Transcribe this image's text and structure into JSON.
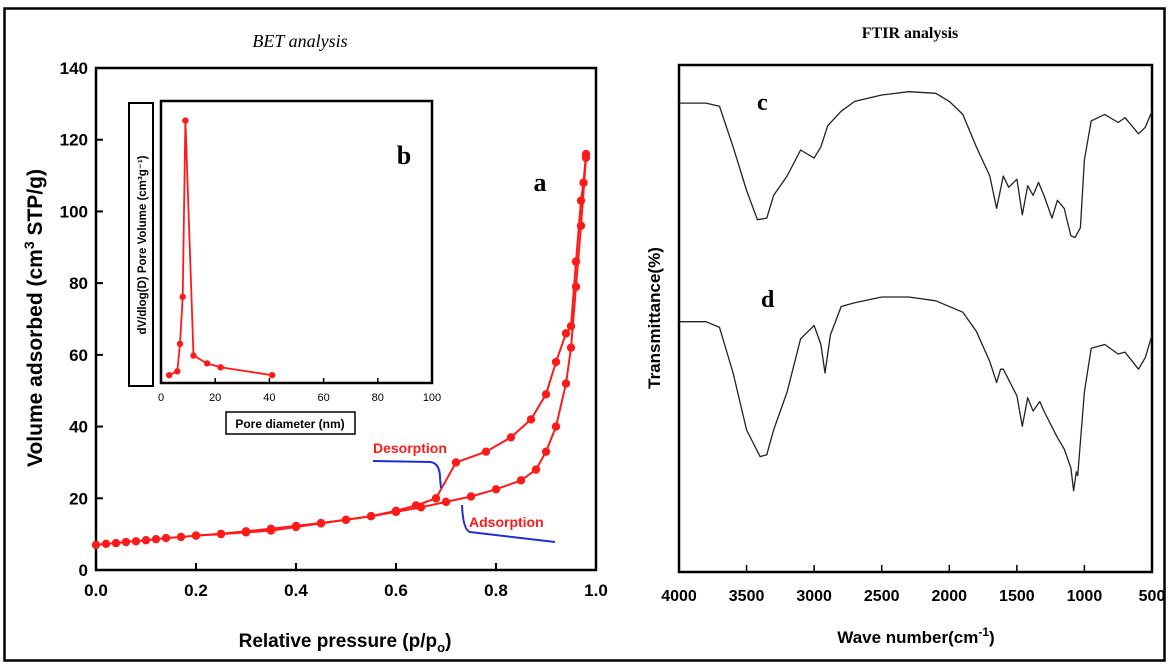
{
  "colors": {
    "frame": "#000000",
    "red_series": "#ff1a1a",
    "blue_arrow": "#1f2fd6",
    "spectrum": "#222222"
  },
  "chart_data": [
    {
      "id": "bet",
      "type": "line",
      "title": "BET analysis",
      "xlabel": "Relative pressure (p/p",
      "xlabel_sub": "o",
      "xlabel_end": ")",
      "ylabel": "Volume adsorbed (cm",
      "ylabel_sup": "3",
      "ylabel_end": " STP/g)",
      "xlim": [
        0.0,
        1.0
      ],
      "ylim": [
        0,
        140
      ],
      "xticks": [
        "0.0",
        "0.2",
        "0.4",
        "0.6",
        "0.8",
        "1.0"
      ],
      "yticks": [
        "0",
        "20",
        "40",
        "60",
        "80",
        "100",
        "120",
        "140"
      ],
      "panel_label": "a",
      "annotations": {
        "desorption": "Desorption",
        "adsorption": "Adsorption"
      },
      "series": [
        {
          "x": [
            0.0,
            0.02,
            0.04,
            0.06,
            0.08,
            0.1,
            0.12,
            0.14,
            0.17,
            0.2,
            0.25,
            0.3,
            0.35,
            0.4,
            0.45,
            0.5,
            0.55,
            0.6,
            0.65,
            0.7,
            0.75,
            0.8,
            0.85,
            0.88,
            0.9,
            0.92,
            0.94,
            0.95,
            0.96,
            0.97,
            0.98
          ],
          "y": [
            7,
            7.3,
            7.5,
            7.8,
            8.0,
            8.3,
            8.6,
            8.9,
            9.2,
            9.6,
            10.1,
            10.8,
            11.5,
            12.3,
            13.1,
            14.0,
            15.0,
            16.2,
            17.5,
            19.0,
            20.5,
            22.5,
            25.0,
            28.0,
            33.0,
            40.0,
            52.0,
            62.0,
            79.0,
            96.0,
            115.0
          ]
        },
        {
          "x": [
            0.98,
            0.975,
            0.97,
            0.96,
            0.95,
            0.94,
            0.92,
            0.9,
            0.87,
            0.83,
            0.78,
            0.72,
            0.68,
            0.64,
            0.6,
            0.55,
            0.5,
            0.45,
            0.4,
            0.35,
            0.3,
            0.25,
            0.2
          ],
          "y": [
            116.0,
            108.0,
            103.0,
            86.0,
            68.0,
            66.0,
            58.0,
            49.0,
            42.0,
            37.0,
            33.0,
            30.0,
            20.0,
            18.0,
            16.5,
            15.0,
            14.0,
            13.0,
            12.0,
            11.0,
            10.5,
            10.0,
            9.6
          ]
        }
      ]
    },
    {
      "id": "bjh-inset",
      "type": "line",
      "xlabel": "Pore diameter (nm)",
      "ylabel": "dV/dlog(D) Pore Volume (cm³g⁻¹)",
      "xlim": [
        0,
        100
      ],
      "xticks": [
        "0",
        "20",
        "40",
        "60",
        "80",
        "100"
      ],
      "panel_label": "b",
      "series": [
        {
          "x": [
            3,
            6,
            7,
            8,
            9,
            12,
            17,
            22,
            41
          ],
          "y": [
            0.02,
            0.03,
            0.1,
            0.22,
            0.67,
            0.07,
            0.05,
            0.04,
            0.02
          ]
        }
      ]
    },
    {
      "id": "ftir",
      "type": "line",
      "title": "FTIR  analysis",
      "xlabel": "Wave number(cm",
      "xlabel_sup": "-1",
      "xlabel_end": ")",
      "ylabel": "Transmittance(%)",
      "xlim": [
        4000,
        500
      ],
      "xticks": [
        "4000",
        "3500",
        "3000",
        "2500",
        "2000",
        "1500",
        "1000",
        "500"
      ],
      "series": [
        {
          "name": "c",
          "x": [
            4000,
            3800,
            3700,
            3600,
            3500,
            3420,
            3350,
            3300,
            3200,
            3100,
            3000,
            2950,
            2900,
            2800,
            2700,
            2500,
            2300,
            2100,
            2000,
            1900,
            1800,
            1700,
            1650,
            1600,
            1560,
            1500,
            1460,
            1420,
            1380,
            1340,
            1300,
            1240,
            1200,
            1150,
            1100,
            1070,
            1030,
            1000,
            950,
            850,
            750,
            700,
            600,
            550,
            500
          ],
          "y": [
            0.87,
            0.87,
            0.85,
            0.6,
            0.33,
            0.15,
            0.16,
            0.3,
            0.42,
            0.58,
            0.53,
            0.6,
            0.73,
            0.82,
            0.88,
            0.92,
            0.94,
            0.93,
            0.88,
            0.8,
            0.6,
            0.42,
            0.22,
            0.42,
            0.35,
            0.4,
            0.18,
            0.36,
            0.3,
            0.38,
            0.3,
            0.16,
            0.27,
            0.22,
            0.05,
            0.04,
            0.1,
            0.52,
            0.76,
            0.8,
            0.75,
            0.78,
            0.68,
            0.72,
            0.82
          ]
        },
        {
          "name": "d",
          "x": [
            4000,
            3800,
            3700,
            3600,
            3500,
            3400,
            3350,
            3300,
            3200,
            3100,
            3000,
            2950,
            2920,
            2880,
            2800,
            2700,
            2500,
            2300,
            2100,
            1900,
            1800,
            1700,
            1650,
            1620,
            1600,
            1500,
            1460,
            1420,
            1380,
            1330,
            1300,
            1200,
            1150,
            1100,
            1080,
            1060,
            1050,
            1000,
            950,
            850,
            750,
            700,
            600,
            550,
            500
          ],
          "y": [
            0.87,
            0.87,
            0.84,
            0.6,
            0.3,
            0.16,
            0.17,
            0.3,
            0.5,
            0.78,
            0.85,
            0.75,
            0.6,
            0.8,
            0.95,
            0.97,
            1.0,
            1.0,
            0.98,
            0.92,
            0.82,
            0.66,
            0.55,
            0.62,
            0.62,
            0.48,
            0.32,
            0.47,
            0.4,
            0.45,
            0.4,
            0.26,
            0.2,
            0.1,
            -0.02,
            0.08,
            0.06,
            0.5,
            0.73,
            0.75,
            0.7,
            0.71,
            0.62,
            0.68,
            0.8
          ]
        }
      ]
    }
  ]
}
